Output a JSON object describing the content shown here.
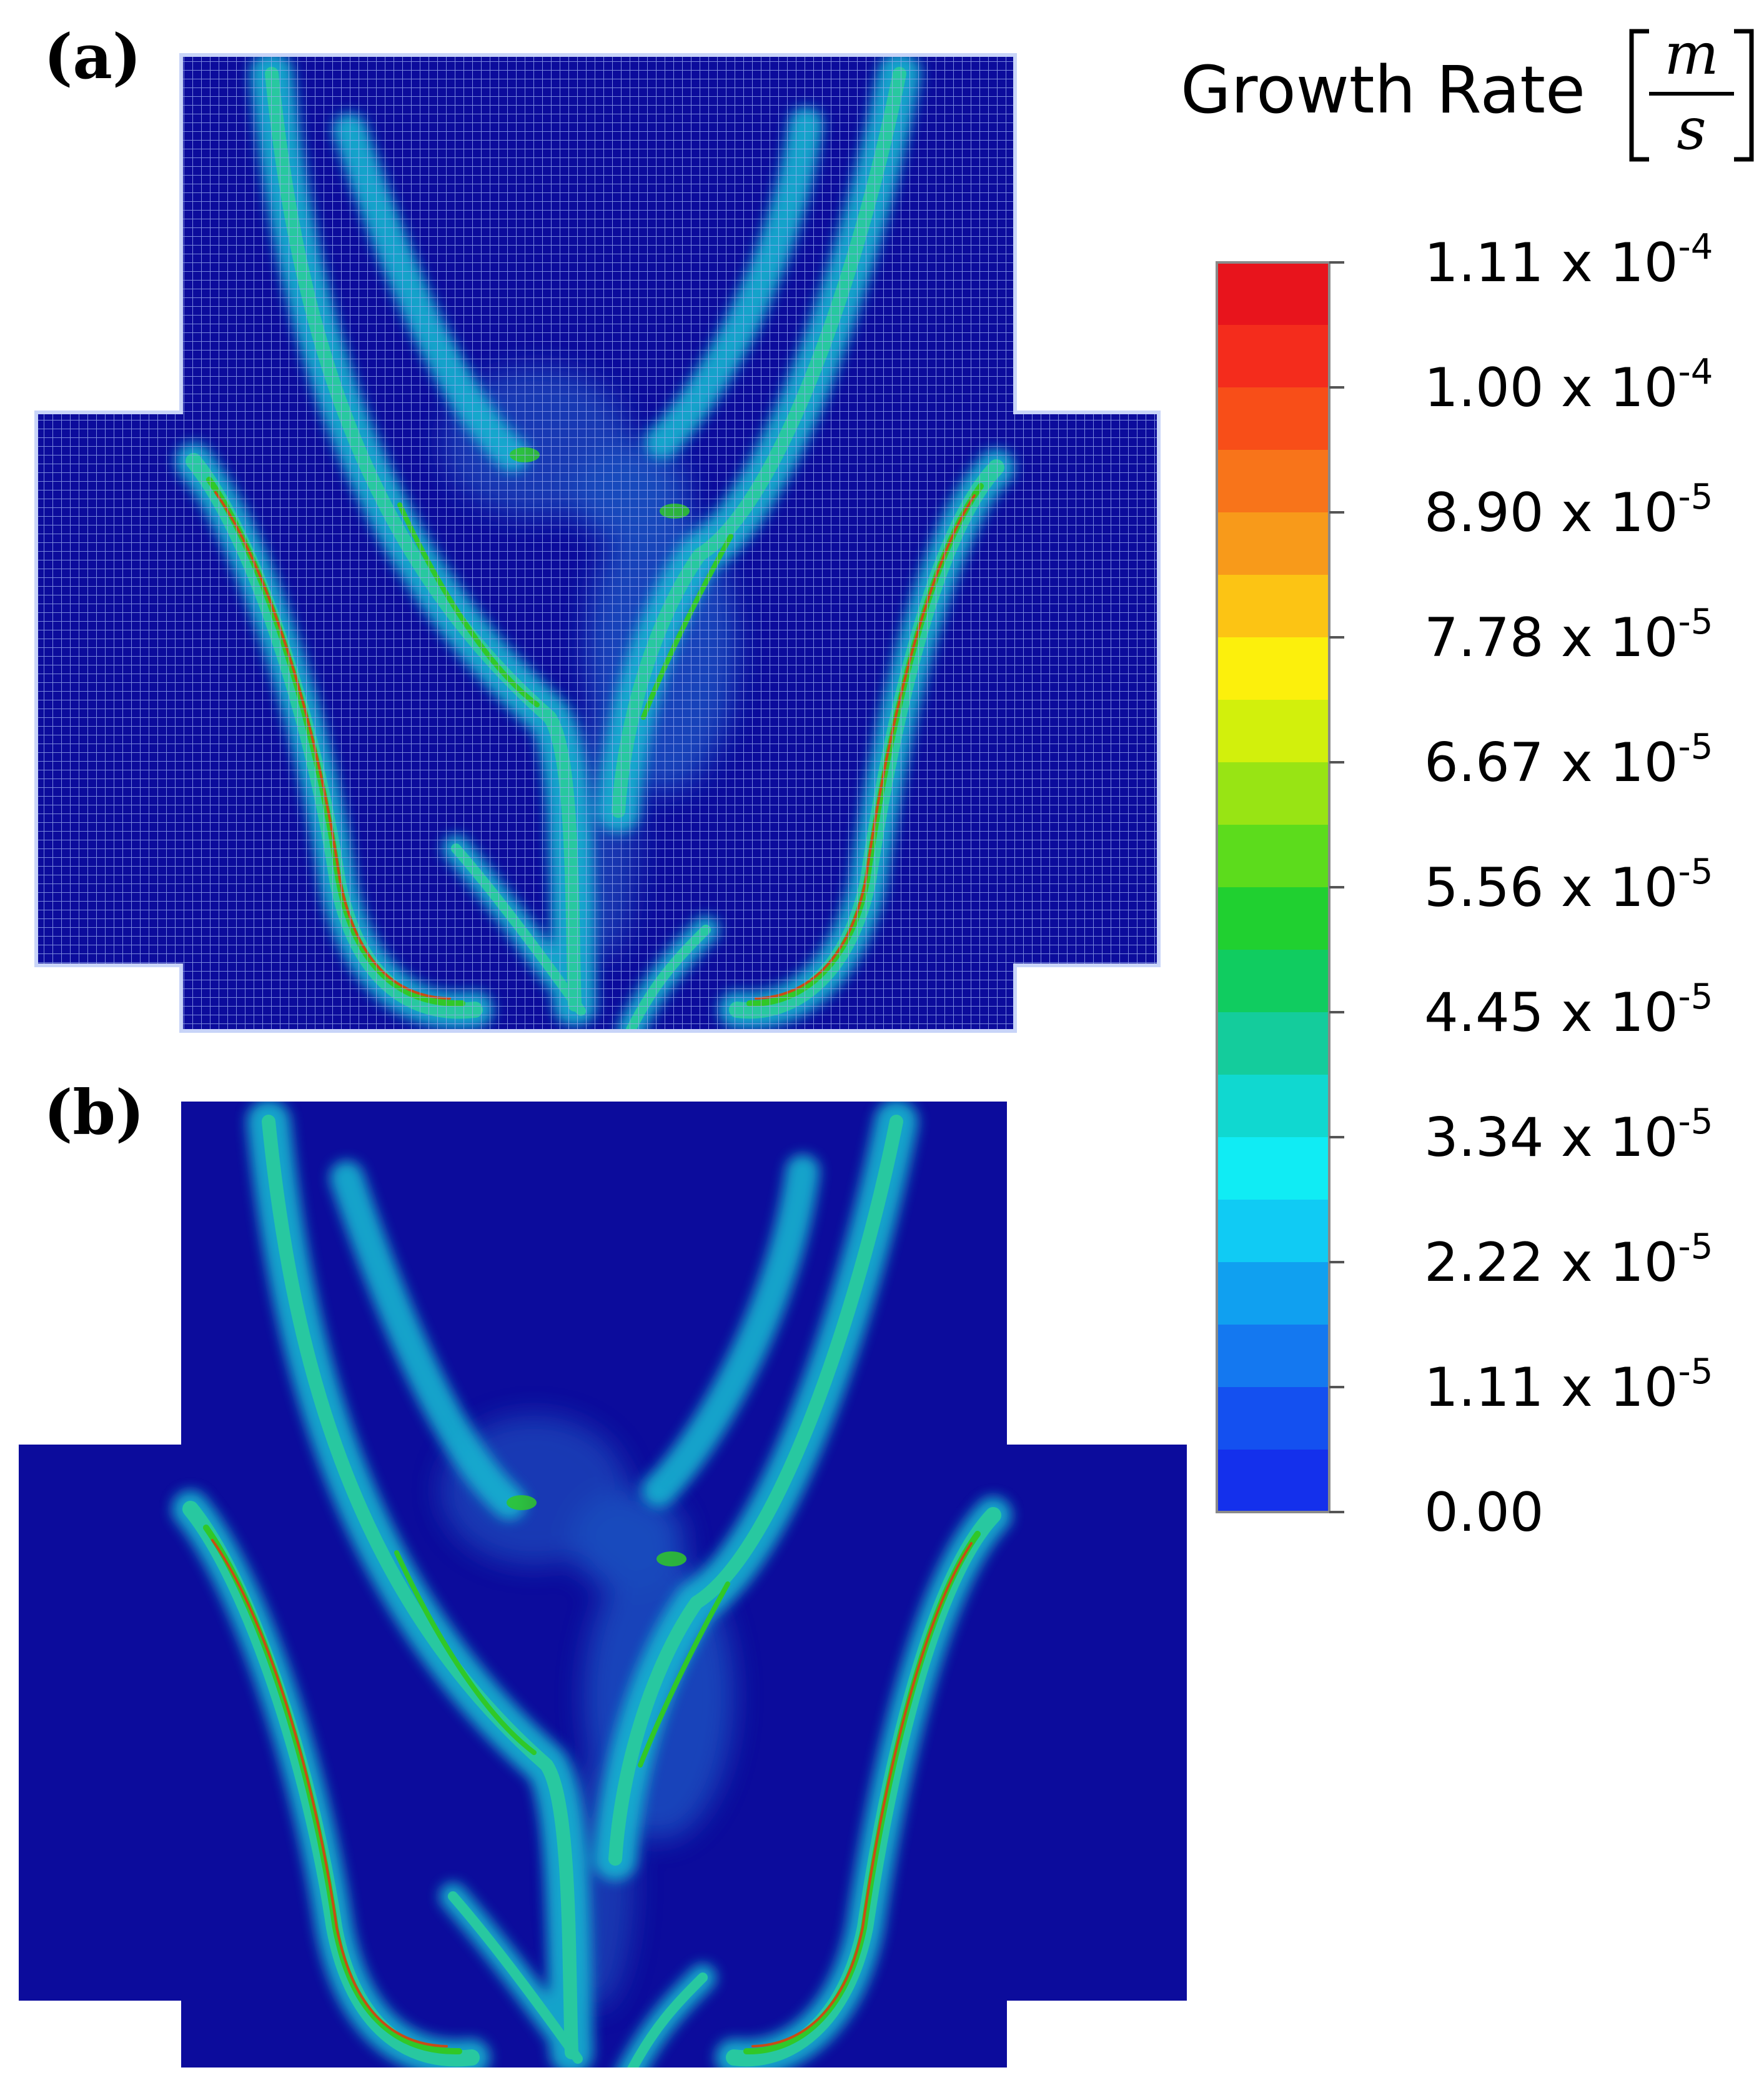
{
  "panels": [
    {
      "id": "a",
      "label": "(a)"
    },
    {
      "id": "b",
      "label": "(b)"
    }
  ],
  "colorbar": {
    "title": "Growth Rate",
    "unit_numerator": "m",
    "unit_denominator": "s",
    "ticks": [
      {
        "mantissa": "1.11 x 10",
        "exponent": "-4"
      },
      {
        "mantissa": "1.00 x 10",
        "exponent": "-4"
      },
      {
        "mantissa": "8.90 x 10",
        "exponent": "-5"
      },
      {
        "mantissa": "7.78 x 10",
        "exponent": "-5"
      },
      {
        "mantissa": "6.67 x 10",
        "exponent": "-5"
      },
      {
        "mantissa": "5.56 x 10",
        "exponent": "-5"
      },
      {
        "mantissa": "4.45 x 10",
        "exponent": "-5"
      },
      {
        "mantissa": "3.34 x 10",
        "exponent": "-5"
      },
      {
        "mantissa": "2.22 x 10",
        "exponent": "-5"
      },
      {
        "mantissa": "1.11 x 10",
        "exponent": "-5"
      },
      {
        "mantissa": "0.00",
        "exponent": ""
      }
    ],
    "bands_top_to_bottom": [
      "#e8141c",
      "#f42c1c",
      "#f84e18",
      "#f8741a",
      "#f89a1a",
      "#fcc414",
      "#fcf00c",
      "#d2f00c",
      "#98e414",
      "#5cdc1c",
      "#20d030",
      "#10cc60",
      "#14cc9c",
      "#10d8d0",
      "#10ecf4",
      "#10cbf4",
      "#10a0f0",
      "#1478f0",
      "#1450f0",
      "#1430ec"
    ]
  },
  "colors": {
    "background": "#0c0c9c",
    "glow": "#14b4d0",
    "ridge": "#28c8a0",
    "core_green": "#30c828",
    "core_red": "#c84c14",
    "mesh": "#9cb0f0"
  }
}
